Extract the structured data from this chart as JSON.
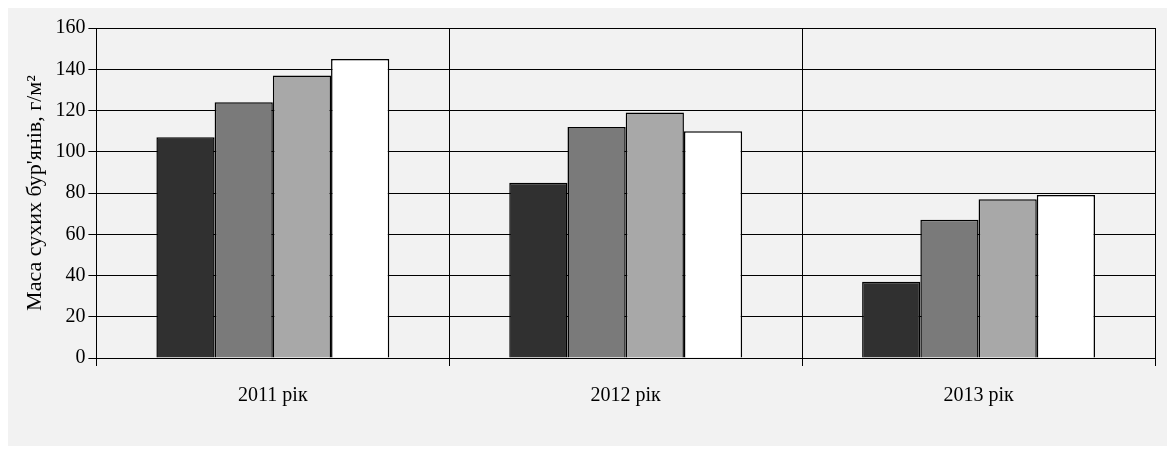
{
  "chart_data": {
    "type": "bar",
    "ylabel": "Маса сухих бур'янів, г/м²",
    "categories": [
      "2011 рік",
      "2012 рік",
      "2013 рік"
    ],
    "series": [
      {
        "color": "#303030",
        "values": [
          107,
          85,
          37
        ]
      },
      {
        "color": "#7a7a7a",
        "values": [
          124,
          112,
          67
        ]
      },
      {
        "color": "#a8a8a8",
        "values": [
          137,
          119,
          77
        ]
      },
      {
        "color": "#ffffff",
        "values": [
          145,
          110,
          79
        ]
      }
    ],
    "ylim": [
      0,
      160
    ],
    "yticks": [
      0,
      20,
      40,
      60,
      80,
      100,
      120,
      140,
      160
    ],
    "grid": true,
    "legend": false
  }
}
